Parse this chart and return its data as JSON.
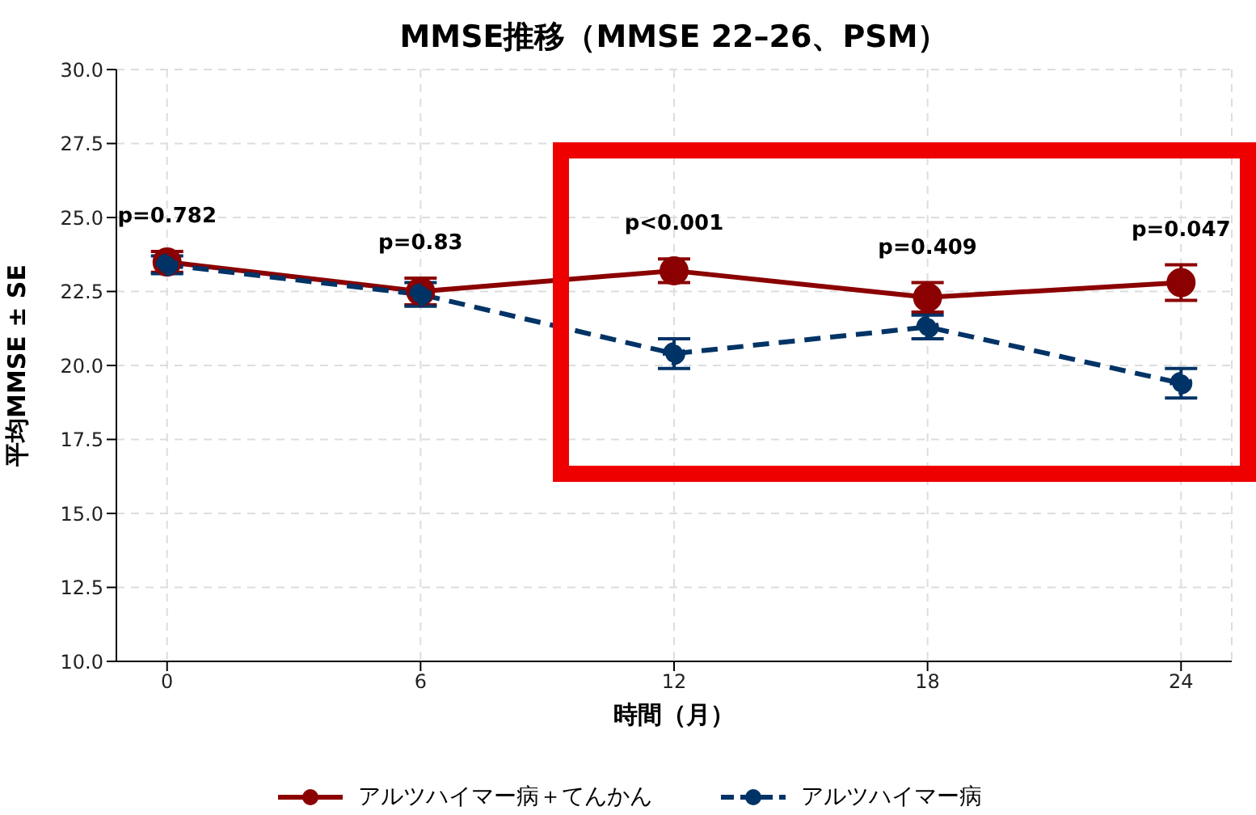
{
  "chart_data": {
    "type": "line",
    "title": "MMSE推移（MMSE 22–26、PSM）",
    "xlabel": "時間（月）",
    "ylabel": "平均MMSE ± SE",
    "x": [
      0,
      6,
      12,
      18,
      24
    ],
    "series": [
      {
        "name": "アルツハイマー病＋てんかん",
        "color": "#8b0000",
        "values": [
          23.5,
          22.5,
          23.2,
          22.3,
          22.8
        ],
        "errors": [
          0.35,
          0.45,
          0.4,
          0.5,
          0.6
        ],
        "line_style": "solid"
      },
      {
        "name": "アルツハイマー病",
        "color": "#003366",
        "values": [
          23.4,
          22.4,
          20.4,
          21.3,
          19.4
        ],
        "errors": [
          0.3,
          0.4,
          0.5,
          0.4,
          0.5
        ],
        "line_style": "dashed"
      }
    ],
    "xlim": [
      -1.2,
      25.2
    ],
    "xticks": [
      0,
      6,
      12,
      18,
      24
    ],
    "ylim": [
      10,
      30
    ],
    "yticks": [
      {
        "value": 10,
        "label": "10.0"
      },
      {
        "value": 12.5,
        "label": "12.5"
      },
      {
        "value": 15,
        "label": "15.0"
      },
      {
        "value": 17.5,
        "label": "17.5"
      },
      {
        "value": 20,
        "label": "20.0"
      },
      {
        "value": 22.5,
        "label": "22.5"
      },
      {
        "value": 25,
        "label": "25.0"
      },
      {
        "value": 27.5,
        "label": "27.5"
      },
      {
        "value": 30,
        "label": "30.0"
      }
    ],
    "grid": true,
    "legend": "bottom",
    "marker": "circle",
    "annotations": [
      "p=0.782",
      "p=0.83",
      "p<0.001",
      "p=0.409",
      "p=0.047"
    ]
  }
}
